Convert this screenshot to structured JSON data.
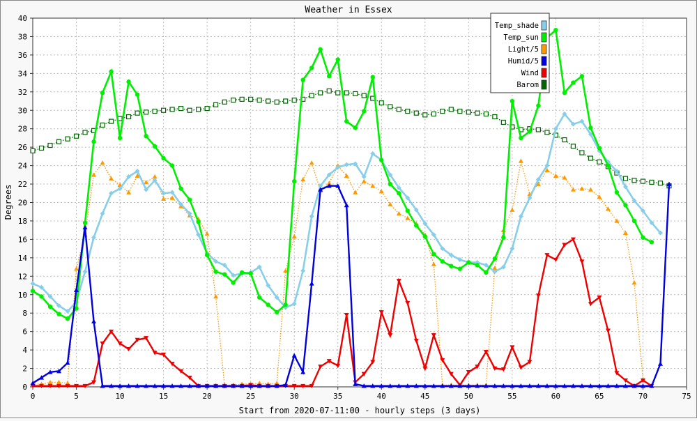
{
  "chart_data": {
    "type": "line",
    "title": "Weather in Essex",
    "xlabel": "Start from 2020-07-11:00 - hourly steps (3 days)",
    "ylabel": "Degrees",
    "xlim": [
      0,
      75
    ],
    "ylim": [
      0,
      40
    ],
    "x_ticks": [
      0,
      5,
      10,
      15,
      20,
      25,
      30,
      35,
      40,
      45,
      50,
      55,
      60,
      65,
      70,
      75
    ],
    "y_ticks": [
      0,
      2,
      4,
      6,
      8,
      10,
      12,
      14,
      16,
      18,
      20,
      22,
      24,
      26,
      28,
      30,
      32,
      34,
      36,
      38,
      40
    ],
    "grid": true,
    "legend_position": "top-right",
    "series": [
      {
        "name": "Temp_shade",
        "color": "#87ceeb",
        "marker": "diamond",
        "values": [
          11.2,
          10.8,
          9.8,
          8.8,
          8.2,
          9.2,
          12.5,
          16.2,
          18.8,
          21.0,
          21.5,
          22.8,
          23.4,
          21.4,
          22.4,
          21.0,
          21.1,
          19.8,
          18.8,
          16.5,
          14.5,
          13.6,
          13.2,
          12.1,
          12.3,
          12.4,
          13.0,
          11.0,
          9.7,
          8.6,
          9.0,
          12.6,
          18.5,
          21.8,
          23.0,
          23.8,
          24.1,
          24.2,
          22.8,
          25.3,
          24.6,
          23.0,
          21.6,
          20.5,
          19.2,
          17.7,
          16.5,
          15.0,
          14.3,
          13.8,
          13.5,
          13.5,
          13.2,
          12.5,
          13.0,
          15.0,
          18.5,
          20.5,
          22.5,
          24.0,
          28.0,
          29.6,
          28.5,
          28.8,
          27.4,
          25.6,
          24.4,
          23.4,
          21.7,
          20.2,
          19.1,
          17.8,
          16.7
        ]
      },
      {
        "name": "Temp_sun",
        "color": "#00ee00",
        "marker": "circle",
        "values": [
          10.4,
          9.8,
          8.7,
          7.9,
          7.4,
          8.5,
          17.8,
          26.6,
          31.9,
          34.2,
          27.0,
          33.1,
          31.7,
          27.2,
          26.1,
          24.8,
          24.0,
          21.5,
          20.3,
          17.9,
          14.3,
          12.5,
          12.2,
          11.3,
          12.4,
          12.3,
          9.7,
          8.9,
          8.1,
          8.9,
          22.3,
          33.3,
          34.6,
          36.6,
          33.7,
          35.5,
          28.8,
          28.1,
          29.9,
          33.6,
          24.6,
          22.0,
          21.0,
          19.1,
          17.5,
          16.3,
          14.4,
          13.6,
          13.1,
          12.8,
          13.5,
          13.2,
          12.4,
          13.9,
          16.2,
          31.0,
          27.0,
          27.7,
          30.5,
          37.9,
          38.7,
          31.9,
          33.0,
          33.7,
          28.1,
          25.9,
          24.0,
          21.1,
          19.7,
          18.0,
          16.2,
          15.7
        ]
      },
      {
        "name": "Light/5",
        "color": "#ff9900",
        "marker": "triangle-up",
        "values": [
          0.3,
          0.3,
          0.5,
          0.5,
          0.4,
          12.8,
          16.5,
          23.0,
          24.3,
          22.6,
          21.9,
          21.1,
          22.9,
          22.2,
          22.8,
          20.4,
          20.5,
          19.6,
          18.6,
          18.2,
          16.6,
          9.8,
          0.2,
          0.2,
          0.3,
          0.3,
          0.4,
          0.3,
          0.4,
          12.6,
          16.3,
          22.5,
          24.3,
          21.3,
          22.1,
          24.0,
          22.9,
          21.1,
          22.3,
          21.8,
          21.2,
          19.8,
          18.8,
          18.3,
          17.7,
          16.5,
          13.3,
          0.2,
          0.2,
          0.2,
          0.2,
          0.2,
          0.2,
          12.9,
          17.0,
          19.2,
          24.5,
          20.9,
          22.0,
          23.5,
          22.9,
          22.7,
          21.4,
          21.5,
          21.4,
          20.6,
          19.3,
          18.0,
          16.7,
          11.3,
          0.8,
          0.1
        ]
      },
      {
        "name": "Humid/5",
        "color": "#0000dd",
        "marker": "triangle-up",
        "values": [
          0.4,
          1.0,
          1.6,
          1.7,
          2.6,
          10.5,
          17.3,
          7.1,
          0.1,
          0.1,
          0.1,
          0.1,
          0.1,
          0.1,
          0.1,
          0.1,
          0.1,
          0.1,
          0.1,
          0.1,
          0.1,
          0.1,
          0.1,
          0.1,
          0.1,
          0.1,
          0.1,
          0.1,
          0.1,
          0.2,
          3.4,
          1.6,
          11.2,
          21.4,
          21.8,
          21.8,
          19.7,
          0.3,
          0.1,
          0.1,
          0.1,
          0.1,
          0.1,
          0.1,
          0.1,
          0.1,
          0.1,
          0.1,
          0.1,
          0.1,
          0.1,
          0.1,
          0.1,
          0.1,
          0.1,
          0.1,
          0.1,
          0.1,
          0.1,
          0.1,
          0.1,
          0.1,
          0.1,
          0.1,
          0.1,
          0.1,
          0.1,
          0.1,
          0.1,
          0.1,
          0.1,
          0.1,
          2.5,
          22.0
        ]
      },
      {
        "name": "Wind",
        "color": "#ee0000",
        "marker": "triangle-down",
        "values": [
          0.1,
          0.1,
          0.1,
          0.1,
          0.1,
          0.1,
          0.1,
          0.5,
          4.7,
          6.0,
          4.7,
          4.1,
          5.1,
          5.3,
          3.7,
          3.5,
          2.5,
          1.7,
          1.0,
          0.1,
          0.1,
          0.1,
          0.1,
          0.1,
          0.1,
          0.2,
          0.1,
          0.1,
          0.1,
          0.1,
          0.1,
          0.1,
          0.1,
          2.2,
          2.8,
          2.3,
          7.8,
          0.5,
          1.4,
          2.7,
          8.1,
          5.6,
          11.5,
          9.1,
          5.0,
          2.0,
          5.6,
          2.9,
          1.4,
          0.2,
          1.6,
          2.2,
          3.8,
          2.0,
          1.9,
          4.3,
          2.1,
          2.7,
          9.9,
          14.3,
          13.8,
          15.4,
          16.0,
          13.6,
          9.0,
          9.7,
          6.1,
          1.5,
          0.7,
          0.1,
          0.7,
          0.1
        ]
      },
      {
        "name": "Barom",
        "color": "#006600",
        "marker": "square-open",
        "values": [
          25.6,
          25.9,
          26.2,
          26.6,
          26.9,
          27.2,
          27.6,
          27.8,
          28.4,
          28.8,
          29.1,
          29.3,
          29.7,
          29.8,
          29.9,
          30.0,
          30.1,
          30.2,
          30.0,
          30.1,
          30.2,
          30.6,
          30.9,
          31.1,
          31.2,
          31.2,
          31.1,
          31.0,
          30.9,
          31.0,
          31.1,
          31.2,
          31.6,
          31.9,
          32.1,
          31.9,
          31.9,
          31.8,
          31.6,
          31.3,
          30.8,
          30.4,
          30.1,
          29.9,
          29.7,
          29.5,
          29.6,
          29.9,
          30.1,
          29.9,
          29.8,
          29.7,
          29.6,
          29.3,
          28.7,
          28.2,
          27.9,
          28.0,
          27.9,
          27.6,
          27.3,
          26.8,
          26.1,
          25.4,
          24.8,
          24.4,
          23.9,
          23.2,
          22.6,
          22.4,
          22.3,
          22.2,
          22.1,
          21.8
        ]
      }
    ]
  }
}
